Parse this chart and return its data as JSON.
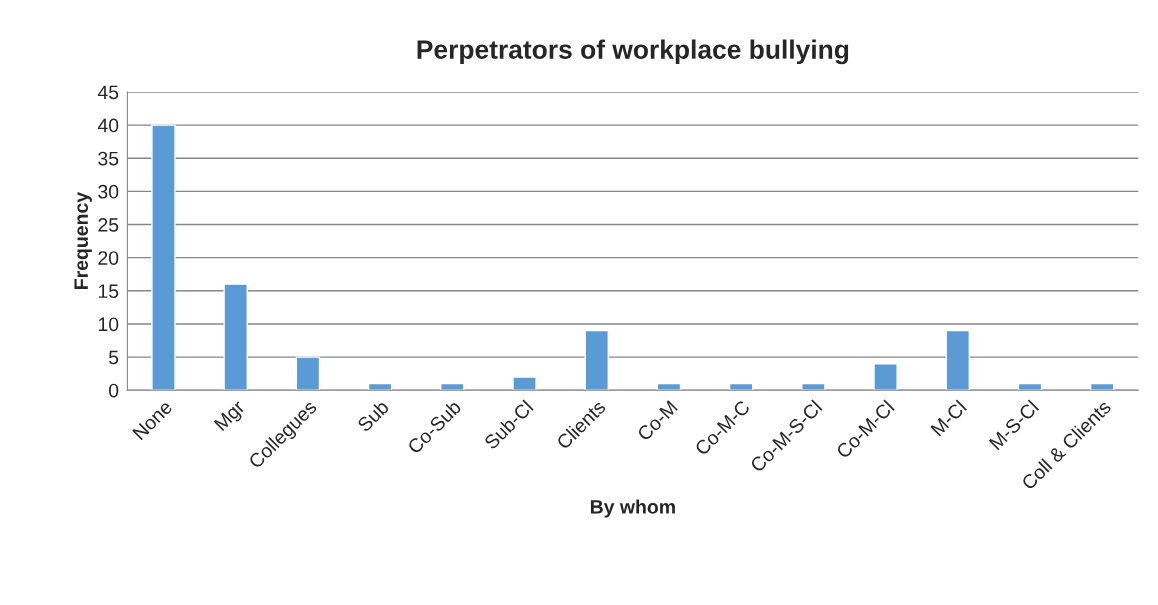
{
  "chart_data": {
    "type": "bar",
    "title": "Perpetrators of workplace bullying",
    "xlabel": "By whom",
    "ylabel": "Frequency",
    "categories": [
      "None",
      "Mgr",
      "Collegues",
      "Sub",
      "Co-Sub",
      "Sub-Cl",
      "Clients",
      "Co-M",
      "Co-M-C",
      "Co-M-S-Cl",
      "Co-M-Cl",
      "M-Cl",
      "M-S-Cl",
      "Coll & Clients"
    ],
    "values": [
      40,
      16,
      5,
      1,
      1,
      2,
      9,
      1,
      1,
      1,
      4,
      9,
      1,
      1
    ],
    "color": "#5b9bd5",
    "ylim": [
      0,
      45
    ],
    "yticks": [
      0,
      5,
      10,
      15,
      20,
      25,
      30,
      35,
      40,
      45
    ],
    "grid": "y"
  }
}
